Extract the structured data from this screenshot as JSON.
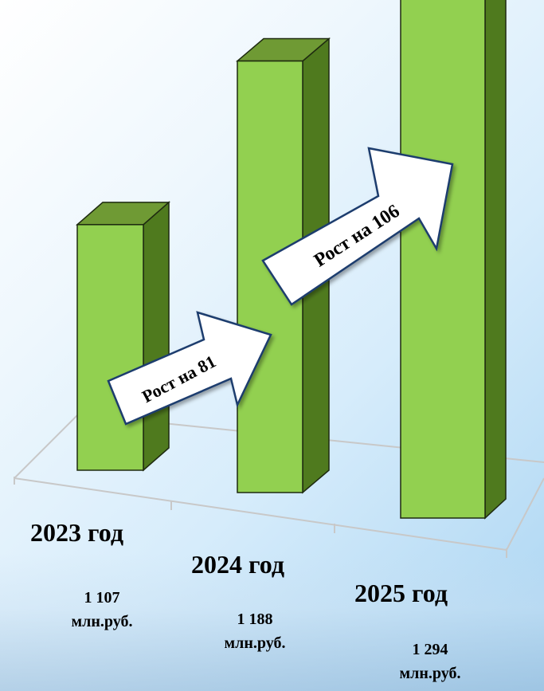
{
  "chart_data": {
    "type": "bar",
    "categories": [
      "2023 год",
      "2024 год",
      "2025 год"
    ],
    "values": [
      1107,
      1188,
      1294
    ],
    "value_labels": [
      {
        "amount": "1 107",
        "unit": "млн.руб."
      },
      {
        "amount": "1 188",
        "unit": "млн.руб."
      },
      {
        "amount": "1 294",
        "unit": "млн.руб."
      }
    ],
    "annotations": [
      "Рост на 81",
      "Рост на 106"
    ],
    "colors": {
      "bar_front": "#92d050",
      "bar_side": "#4f7a1e",
      "bar_top": "#6f9a34",
      "floor_line": "#c8c8c8"
    }
  }
}
